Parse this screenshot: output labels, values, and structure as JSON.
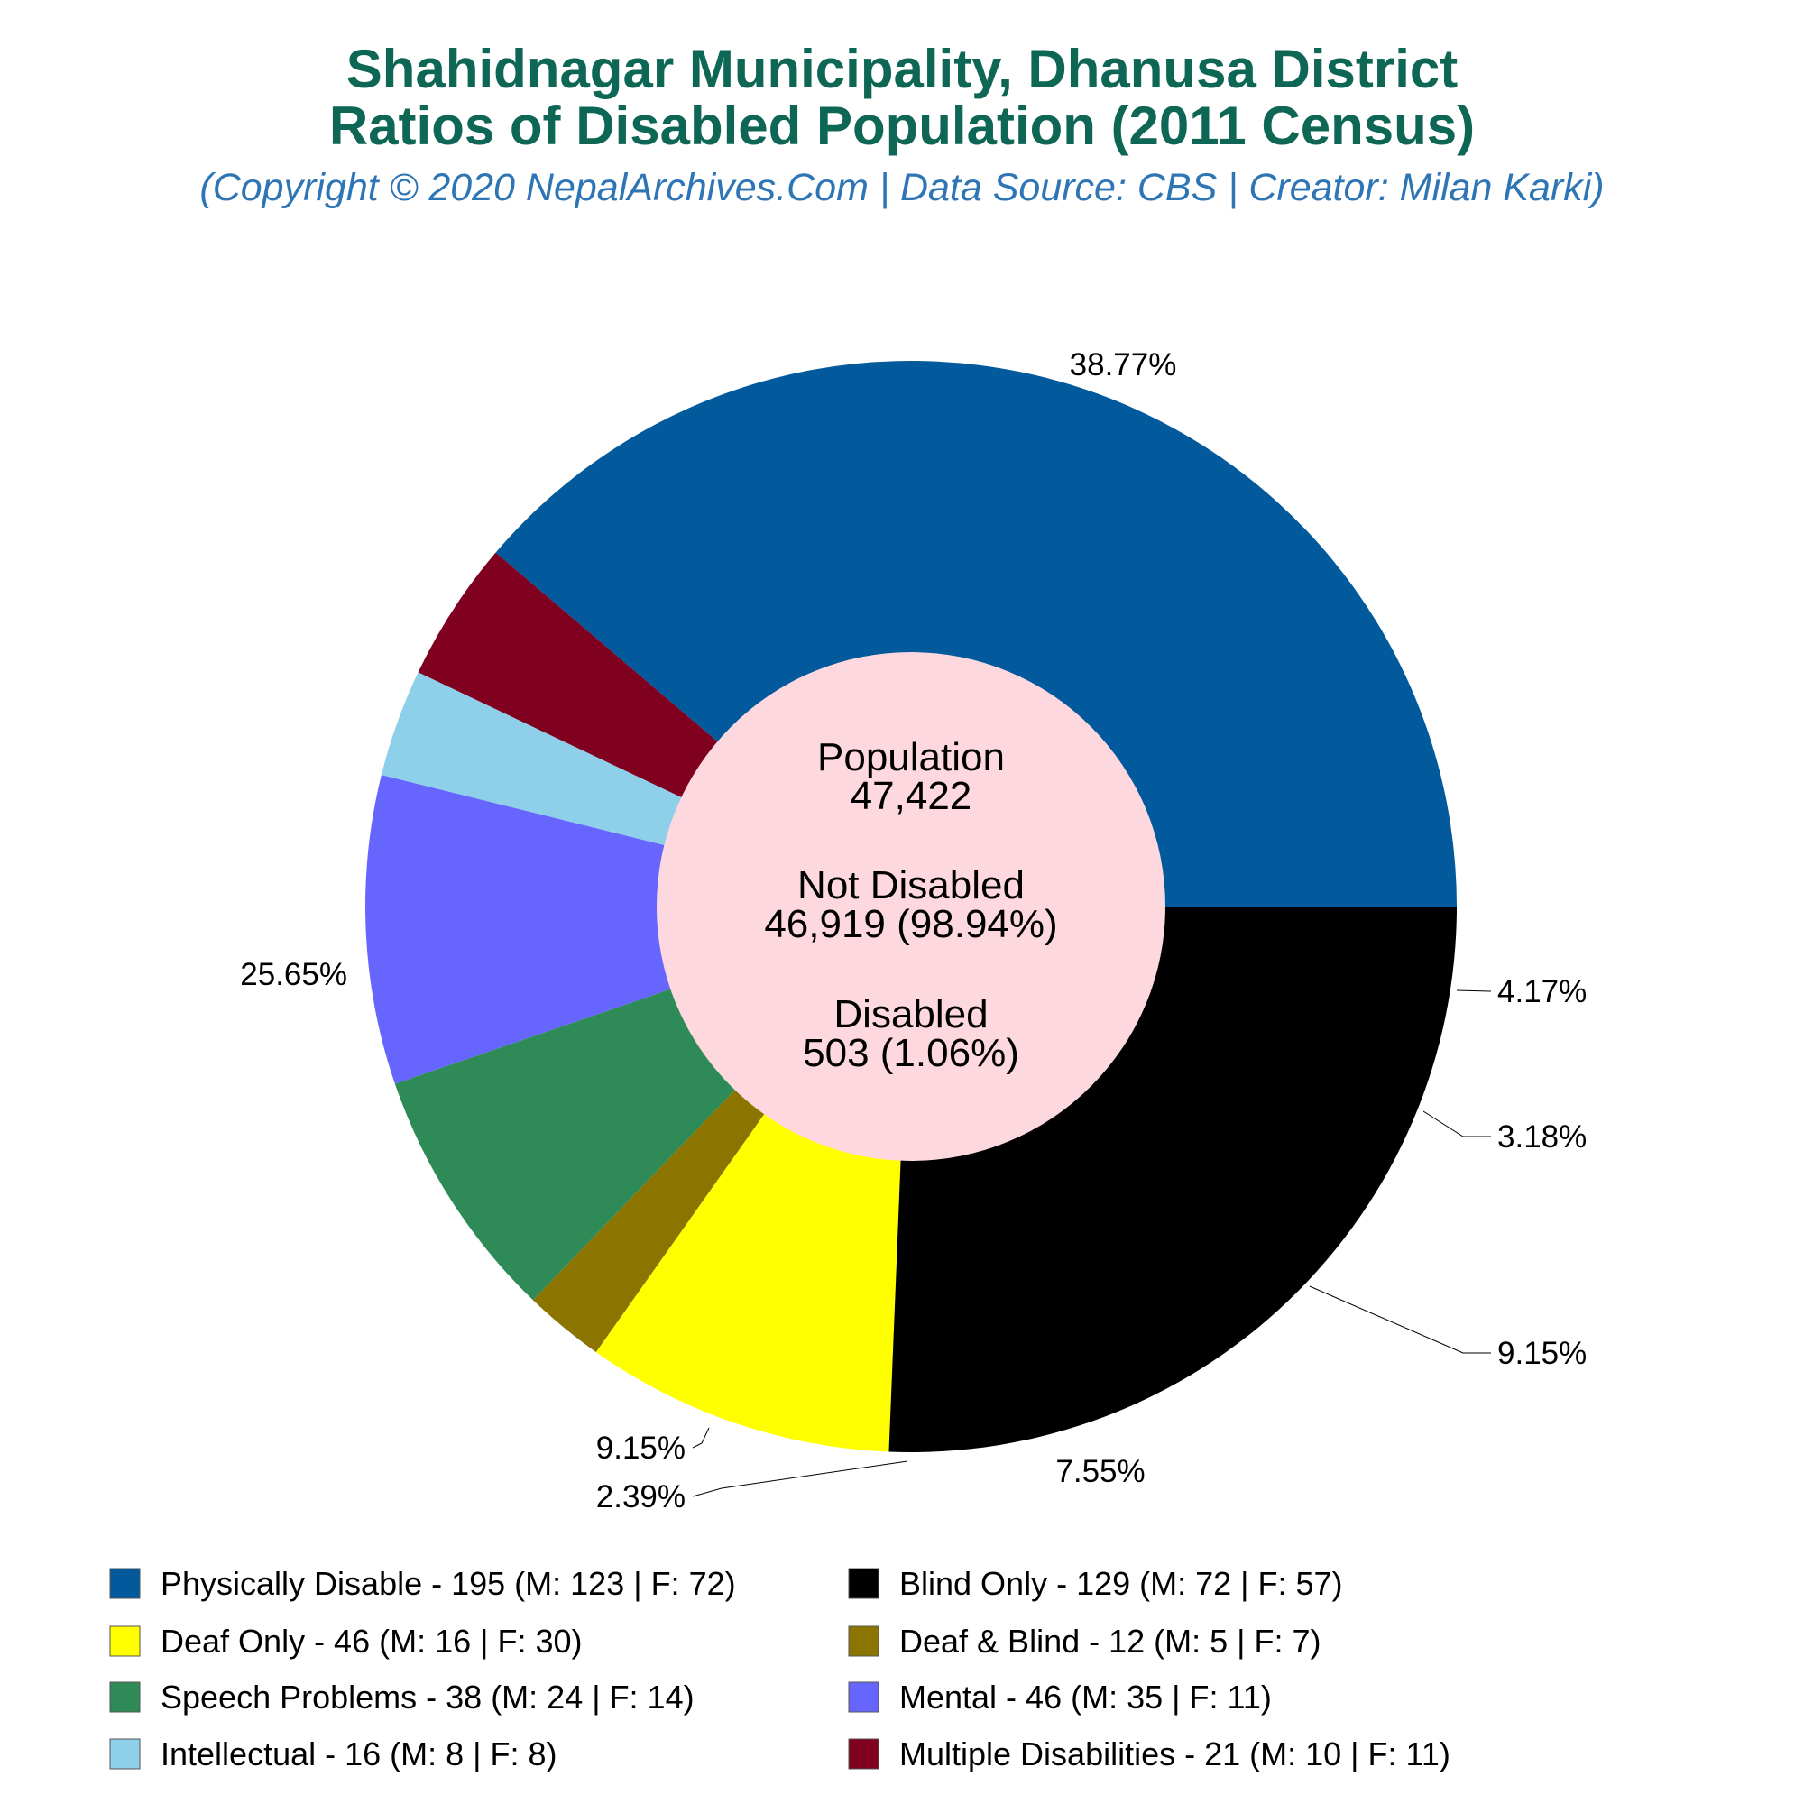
{
  "header": {
    "title_line1": "Shahidnagar Municipality, Dhanusa District",
    "title_line2": "Ratios of Disabled Population (2011 Census)",
    "subtitle": "(Copyright © 2020 NepalArchives.Com | Data Source: CBS | Creator: Milan Karki)"
  },
  "center": {
    "population_label": "Population",
    "population_value": "47,422",
    "not_disabled_label": "Not Disabled",
    "not_disabled_value": "46,919 (98.94%)",
    "disabled_label": "Disabled",
    "disabled_value": "503 (1.06%)"
  },
  "chart_data": {
    "type": "pie",
    "title": "Shahidnagar Municipality, Dhanusa District Ratios of Disabled Population (2011 Census)",
    "total_disabled": 503,
    "slices": [
      {
        "name": "Physically Disable",
        "value": 195,
        "male": 123,
        "female": 72,
        "percent": "38.77%",
        "color": "#02599c",
        "legend": "Physically Disable - 195 (M: 123 | F: 72)"
      },
      {
        "name": "Multiple Disabilities",
        "value": 21,
        "male": 10,
        "female": 11,
        "percent": "4.17%",
        "color": "#800020",
        "legend": "Multiple Disabilities - 21 (M: 10 | F: 11)"
      },
      {
        "name": "Intellectual",
        "value": 16,
        "male": 8,
        "female": 8,
        "percent": "3.18%",
        "color": "#8ecfea",
        "legend": "Intellectual - 16 (M: 8 | F: 8)"
      },
      {
        "name": "Mental",
        "value": 46,
        "male": 35,
        "female": 11,
        "percent": "9.15%",
        "color": "#6666ff",
        "legend": "Mental - 46 (M: 35 | F: 11)"
      },
      {
        "name": "Speech Problems",
        "value": 38,
        "male": 24,
        "female": 14,
        "percent": "7.55%",
        "color": "#2e8b57",
        "legend": "Speech Problems - 38 (M: 24 | F: 14)"
      },
      {
        "name": "Deaf & Blind",
        "value": 12,
        "male": 5,
        "female": 7,
        "percent": "2.39%",
        "color": "#8b7500",
        "legend": "Deaf & Blind - 12 (M: 5 | F: 7)"
      },
      {
        "name": "Deaf Only",
        "value": 46,
        "male": 16,
        "female": 30,
        "percent": "9.15%",
        "color": "#ffff00",
        "legend": "Deaf Only - 46 (M: 16 | F: 30)"
      },
      {
        "name": "Blind Only",
        "value": 129,
        "male": 72,
        "female": 57,
        "percent": "25.65%",
        "color": "#000000",
        "legend": "Blind Only - 129 (M: 72 | F: 57)"
      }
    ],
    "legend_order": [
      "Physically Disable",
      "Blind Only",
      "Deaf Only",
      "Deaf & Blind",
      "Speech Problems",
      "Mental",
      "Intellectual",
      "Multiple Disabilities"
    ],
    "center_color": "#fdd8df"
  }
}
